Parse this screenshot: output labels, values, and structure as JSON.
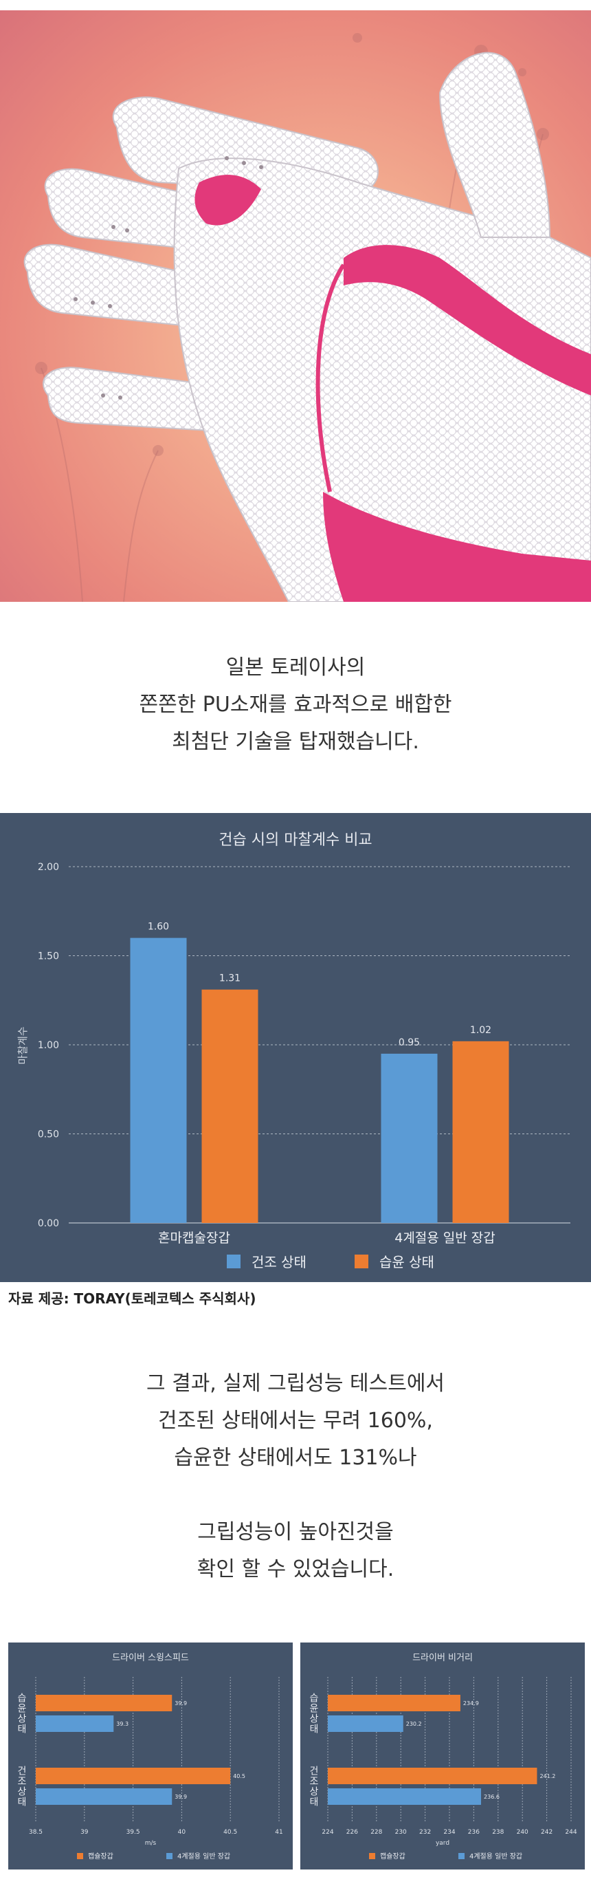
{
  "intro": {
    "lines": [
      "일본 토레이사의",
      "쫀쫀한 PU소재를 효과적으로 배합한",
      "최첨단 기술을 탑재했습니다."
    ]
  },
  "result": {
    "lines": [
      "그 결과, 실제 그립성능 테스트에서",
      "건조된 상태에서는 무려 160%,",
      "습윤한 상태에서도 131%나",
      "",
      "그립성능이 높아진것을",
      "확인 할 수 있었습니다."
    ]
  },
  "source_note": "자료 제공:  TORAY(토레코텍스 주식회사)",
  "colors": {
    "blue": "#5b9bd5",
    "orange": "#ed7d31",
    "panel": "#44546a"
  },
  "chart_data": [
    {
      "type": "bar",
      "title": "건습 시의 마찰계수 비교",
      "ylabel": "마찰계수",
      "ylim": [
        0,
        2
      ],
      "yticks": [
        "0.00",
        "0.50",
        "1.00",
        "1.50",
        "2.00"
      ],
      "categories": [
        "혼마캡술장갑",
        "4계절용 일반 장갑"
      ],
      "series": [
        {
          "name": "건조 상태",
          "values": [
            1.6,
            0.95
          ],
          "labels": [
            "1.60",
            "0.95"
          ]
        },
        {
          "name": "습윤 상태",
          "values": [
            1.31,
            1.02
          ],
          "labels": [
            "1.31",
            "1.02"
          ]
        }
      ],
      "legend": "bottom",
      "grid": true
    },
    {
      "type": "bar",
      "orientation": "horizontal",
      "title": "드라이버 스윙스피드",
      "xlabel": "m/s",
      "xlim": [
        38.5,
        41
      ],
      "xticks": [
        "38.5",
        "39",
        "39.5",
        "40",
        "40.5",
        "41"
      ],
      "categories": [
        "습윤상태",
        "건조상태"
      ],
      "series": [
        {
          "name": "캡슐장갑",
          "values": [
            39.9,
            40.5
          ],
          "labels": [
            "39.9",
            "40.5"
          ]
        },
        {
          "name": "4계절용 일반 장갑",
          "values": [
            39.3,
            39.9
          ],
          "labels": [
            "39.3",
            "39.9"
          ]
        }
      ],
      "legend": "bottom",
      "grid": true
    },
    {
      "type": "bar",
      "orientation": "horizontal",
      "title": "드라이버 비거리",
      "xlabel": "yard",
      "xlim": [
        224,
        244
      ],
      "xticks": [
        "224",
        "226",
        "228",
        "230",
        "232",
        "234",
        "236",
        "238",
        "240",
        "242",
        "244"
      ],
      "categories": [
        "습윤상태",
        "건조상태"
      ],
      "series": [
        {
          "name": "캡슐장갑",
          "values": [
            234.9,
            241.2
          ],
          "labels": [
            "234.9",
            "241.2"
          ]
        },
        {
          "name": "4계절용 일반 장갑",
          "values": [
            230.2,
            236.6
          ],
          "labels": [
            "230.2",
            "236.6"
          ]
        }
      ],
      "legend": "bottom",
      "grid": true
    }
  ]
}
